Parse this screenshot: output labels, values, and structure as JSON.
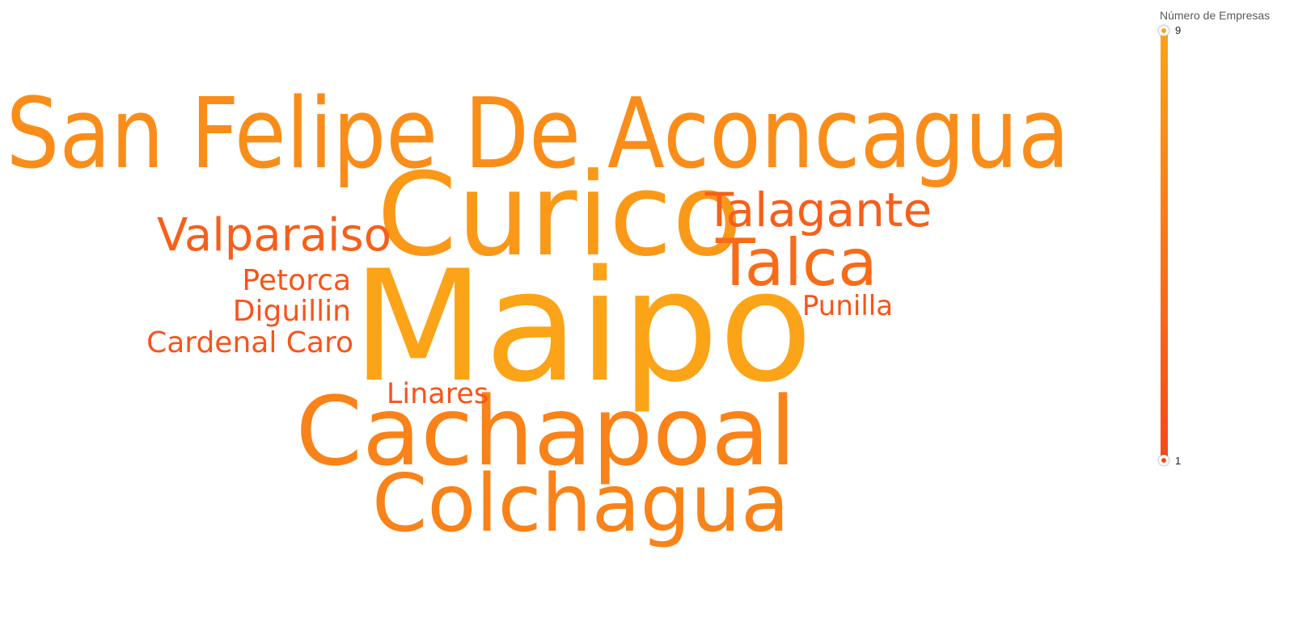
{
  "legend": {
    "title": "Número de Empresas",
    "max_label": "9",
    "min_label": "1",
    "color_max": "#fba418",
    "color_min": "#f6481a"
  },
  "chart_data": {
    "type": "wordcloud",
    "value_name": "Número de Empresas",
    "value_range": [
      1,
      9
    ],
    "words": [
      {
        "text": "Maipo",
        "value": 9
      },
      {
        "text": "San Felipe De Aconcagua",
        "value": 7
      },
      {
        "text": "Curico",
        "value": 8
      },
      {
        "text": "Cachapoal",
        "value": 6
      },
      {
        "text": "Colchagua",
        "value": 6
      },
      {
        "text": "Talca",
        "value": 4
      },
      {
        "text": "Talagante",
        "value": 3
      },
      {
        "text": "Valparaiso",
        "value": 3
      },
      {
        "text": "Petorca",
        "value": 2
      },
      {
        "text": "Diguillin",
        "value": 2
      },
      {
        "text": "Cardenal Caro",
        "value": 2
      },
      {
        "text": "Punilla",
        "value": 2
      },
      {
        "text": "Linares",
        "value": 2
      }
    ]
  }
}
